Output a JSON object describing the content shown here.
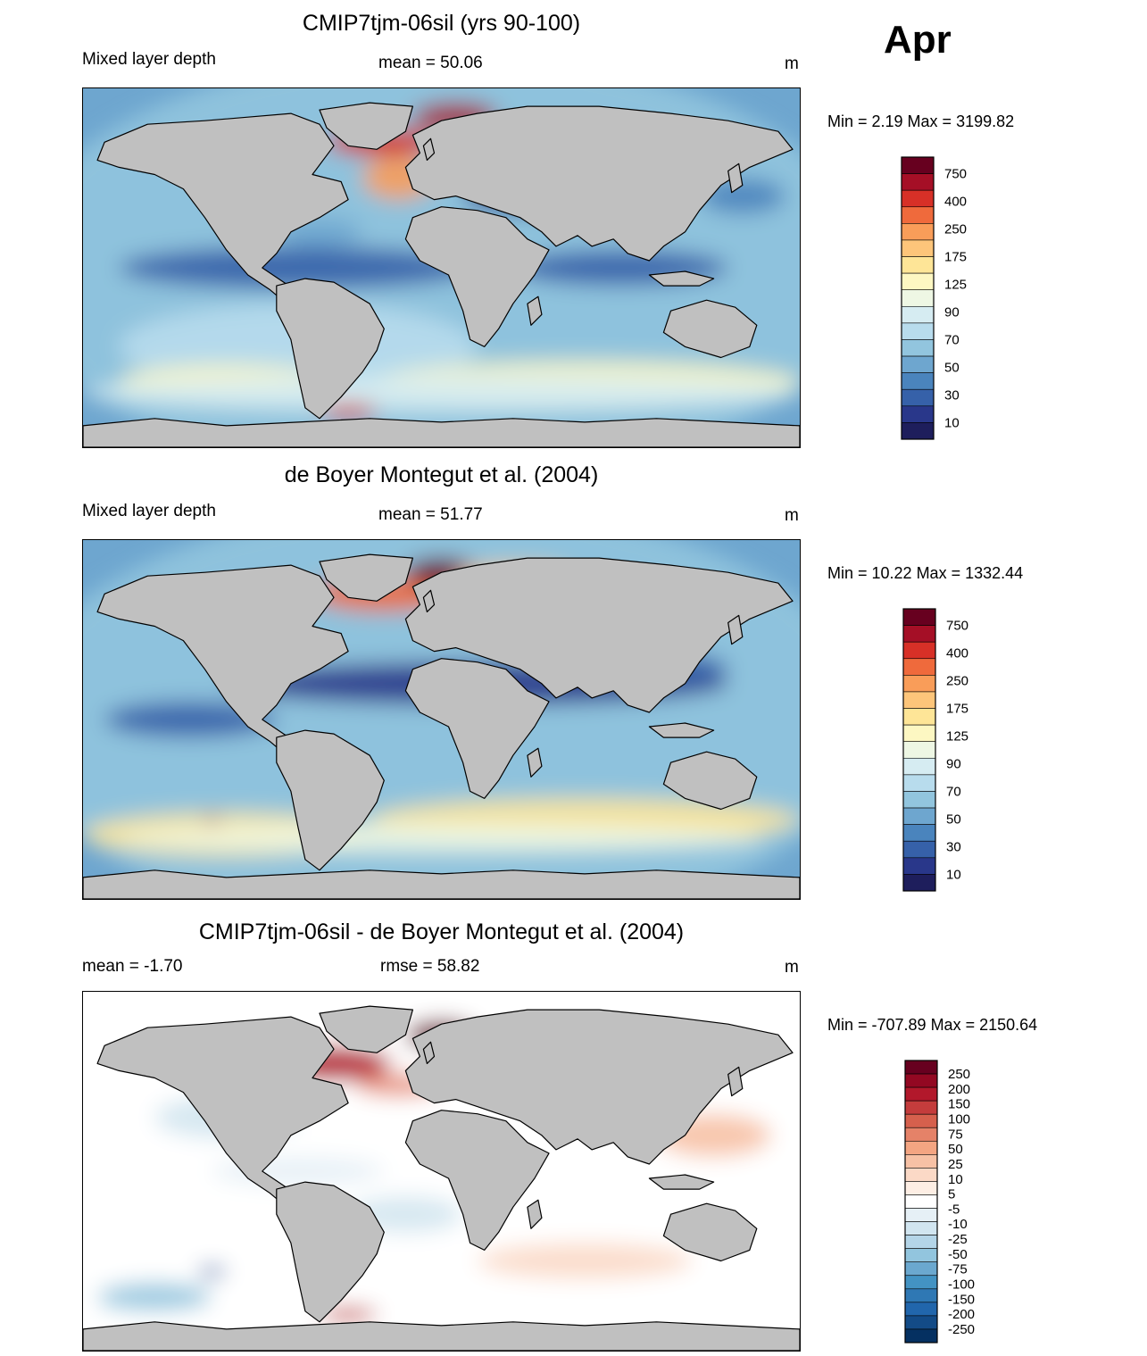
{
  "month": "Apr",
  "panels": [
    {
      "title": "CMIP7tjm-06sil (yrs 90-100)",
      "left_label": "Mixed layer depth",
      "center_label": "mean =  50.06",
      "right_label": "m",
      "minmax": "Min =   2.19 Max = 3199.82",
      "type": "absolute"
    },
    {
      "title": "de Boyer Montegut et al. (2004)",
      "left_label": "Mixed layer depth",
      "center_label": "mean =  51.77",
      "right_label": "m",
      "minmax": "Min =  10.22 Max = 1332.44",
      "type": "absolute"
    },
    {
      "title": "CMIP7tjm-06sil - de Boyer Montegut et al. (2004)",
      "left_label": "mean =  -1.70",
      "center_label": "rmse =  58.82",
      "right_label": "m",
      "minmax": "Min = -707.89 Max = 2150.64",
      "type": "difference"
    }
  ],
  "colorbar_abs": {
    "labels": [
      "750",
      "400",
      "250",
      "175",
      "125",
      "90",
      "70",
      "50",
      "30",
      "10"
    ],
    "colors": [
      "#67001f",
      "#a50f26",
      "#d73027",
      "#ef6a3c",
      "#f99d59",
      "#fdc57a",
      "#fee597",
      "#fdf7c2",
      "#eef7e4",
      "#d6ecf2",
      "#b8dced",
      "#92c5de",
      "#6ea6cf",
      "#4a84bd",
      "#3661a9",
      "#29378a",
      "#1e1e5c"
    ]
  },
  "colorbar_diff": {
    "labels": [
      "250",
      "200",
      "150",
      "100",
      "75",
      "50",
      "25",
      "10",
      "5",
      "-5",
      "-10",
      "-25",
      "-50",
      "-75",
      "-100",
      "-150",
      "-200",
      "-250"
    ],
    "colors": [
      "#67001f",
      "#930822",
      "#b2182b",
      "#c43c3c",
      "#d6604d",
      "#e58268",
      "#f4a582",
      "#f7c1a5",
      "#fbd9c6",
      "#fdeee4",
      "#ffffff",
      "#e6f0f6",
      "#d1e5f0",
      "#b4d5e8",
      "#92c5de",
      "#6ba8cf",
      "#4393c3",
      "#2f78b4",
      "#2166ac",
      "#134b87",
      "#053061"
    ]
  },
  "colors": {
    "land": "#c0c0c0",
    "ocean_abs": "#6ea6cf",
    "ocean_diff": "#ffffff"
  }
}
